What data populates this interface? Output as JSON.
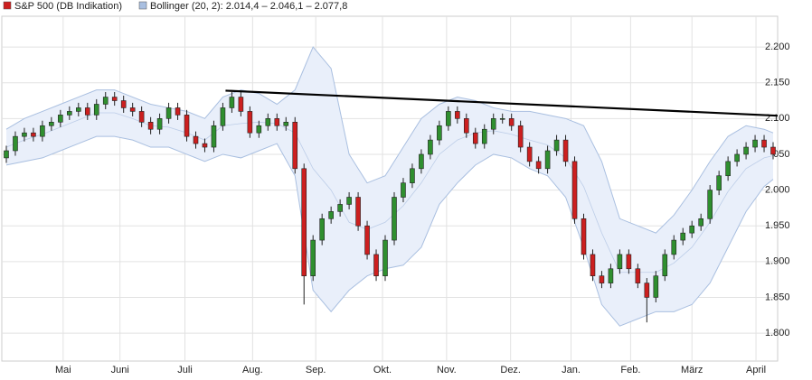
{
  "chart_data": {
    "type": "candlestick",
    "legend": [
      {
        "label": "S&P 500 (DB Indikation)",
        "color": "#cc1f1f"
      },
      {
        "label": "Bollinger (20, 2): 2.014,4 – 2.046,1 – 2.077,8",
        "color": "#a9bfe0"
      }
    ],
    "up_color": "#2f8f2f",
    "down_color": "#cc1f1f",
    "open": [
      2045,
      2055,
      2075,
      2080,
      2075,
      2090,
      2095,
      2105,
      2110,
      2115,
      2105,
      2120,
      2130,
      2125,
      2115,
      2110,
      2095,
      2085,
      2100,
      2115,
      2105,
      2075,
      2065,
      2060,
      2090,
      2115,
      2130,
      2110,
      2080,
      2090,
      2100,
      2090,
      2095,
      2030,
      1880,
      1930,
      1960,
      1970,
      1980,
      1990,
      1950,
      1910,
      1880,
      1930,
      1990,
      2010,
      2030,
      2050,
      2070,
      2090,
      2110,
      2100,
      2080,
      2065,
      2085,
      2100,
      2100,
      2090,
      2060,
      2040,
      2030,
      2055,
      2070,
      2040,
      1960,
      1910,
      1880,
      1870,
      1890,
      1910,
      1890,
      1870,
      1850,
      1880,
      1910,
      1930,
      1940,
      1950,
      1960,
      2000,
      2020,
      2040,
      2050,
      2060,
      2070,
      2060
    ],
    "high": [
      2062,
      2082,
      2087,
      2087,
      2097,
      2102,
      2112,
      2117,
      2122,
      2122,
      2127,
      2137,
      2137,
      2132,
      2122,
      2117,
      2102,
      2107,
      2122,
      2122,
      2112,
      2082,
      2072,
      2097,
      2122,
      2137,
      2137,
      2117,
      2097,
      2107,
      2107,
      2102,
      2102,
      2037,
      1937,
      1967,
      1977,
      1987,
      1997,
      1997,
      1957,
      1917,
      1937,
      1997,
      2017,
      2037,
      2057,
      2077,
      2097,
      2117,
      2117,
      2107,
      2087,
      2092,
      2107,
      2107,
      2107,
      2097,
      2067,
      2047,
      2062,
      2077,
      2077,
      2047,
      1967,
      1917,
      1887,
      1897,
      1917,
      1917,
      1897,
      1877,
      1887,
      1917,
      1937,
      1947,
      1957,
      1967,
      2007,
      2027,
      2047,
      2057,
      2067,
      2077,
      2077,
      2067
    ],
    "low": [
      2038,
      2048,
      2068,
      2068,
      2068,
      2083,
      2088,
      2098,
      2103,
      2098,
      2098,
      2113,
      2118,
      2108,
      2103,
      2088,
      2078,
      2078,
      2093,
      2098,
      2068,
      2058,
      2053,
      2053,
      2083,
      2108,
      2103,
      2073,
      2073,
      2083,
      2083,
      2083,
      2023,
      1840,
      1873,
      1923,
      1953,
      1963,
      1973,
      1943,
      1903,
      1873,
      1873,
      1923,
      1983,
      2003,
      2023,
      2043,
      2063,
      2083,
      2093,
      2073,
      2058,
      2058,
      2078,
      2093,
      2083,
      2053,
      2033,
      2023,
      2023,
      2048,
      2033,
      1953,
      1903,
      1873,
      1863,
      1863,
      1883,
      1883,
      1863,
      1815,
      1843,
      1873,
      1903,
      1923,
      1933,
      1943,
      1953,
      1993,
      2013,
      2033,
      2043,
      2053,
      2053,
      2043
    ],
    "close": [
      2055,
      2075,
      2080,
      2075,
      2090,
      2095,
      2105,
      2110,
      2115,
      2105,
      2120,
      2130,
      2125,
      2115,
      2110,
      2095,
      2085,
      2100,
      2115,
      2105,
      2075,
      2065,
      2060,
      2090,
      2115,
      2130,
      2110,
      2080,
      2090,
      2100,
      2090,
      2095,
      2030,
      1880,
      1930,
      1960,
      1970,
      1980,
      1990,
      1950,
      1910,
      1880,
      1930,
      1990,
      2010,
      2030,
      2050,
      2070,
      2090,
      2110,
      2100,
      2080,
      2065,
      2085,
      2100,
      2100,
      2090,
      2060,
      2040,
      2030,
      2055,
      2070,
      2040,
      1960,
      1910,
      1880,
      1870,
      1890,
      1910,
      1890,
      1870,
      1850,
      1880,
      1910,
      1930,
      1940,
      1950,
      1960,
      2000,
      2020,
      2040,
      2050,
      2060,
      2070,
      2060,
      2050
    ],
    "bands": {
      "x": [
        0.5,
        2.5,
        4.5,
        6.5,
        8.5,
        10.5,
        12.5,
        14.5,
        16.5,
        18.5,
        20.5,
        22.5,
        24.5,
        26.5,
        28.5,
        30.5,
        32.5,
        34.5,
        36.5,
        38.5,
        40.5,
        42.5,
        44.5,
        46.5,
        48.5,
        50.5,
        52.5,
        54.5,
        56.5,
        58.5,
        60.5,
        62.5,
        64.5,
        66.5,
        68.5,
        70.5,
        72.5,
        74.5,
        76.5,
        78.5,
        80.5,
        82.5,
        84.5,
        85.5
      ],
      "upper": [
        2085,
        2100,
        2110,
        2120,
        2130,
        2140,
        2140,
        2130,
        2120,
        2115,
        2110,
        2100,
        2130,
        2140,
        2135,
        2120,
        2140,
        2200,
        2170,
        2050,
        2010,
        2020,
        2060,
        2100,
        2120,
        2130,
        2125,
        2115,
        2110,
        2110,
        2105,
        2100,
        2090,
        2040,
        1960,
        1950,
        1940,
        1965,
        2000,
        2040,
        2075,
        2090,
        2085,
        2080
      ],
      "middle": [
        2060,
        2070,
        2078,
        2088,
        2098,
        2108,
        2108,
        2100,
        2090,
        2088,
        2080,
        2070,
        2090,
        2093,
        2095,
        2093,
        2080,
        2030,
        2000,
        1955,
        1945,
        1955,
        1978,
        2010,
        2050,
        2070,
        2080,
        2083,
        2078,
        2070,
        2063,
        2045,
        2005,
        1940,
        1885,
        1885,
        1885,
        1898,
        1920,
        1955,
        1998,
        2030,
        2045,
        2048
      ],
      "lower": [
        2035,
        2040,
        2045,
        2055,
        2065,
        2075,
        2075,
        2070,
        2060,
        2060,
        2050,
        2040,
        2050,
        2045,
        2055,
        2065,
        2020,
        1860,
        1830,
        1860,
        1880,
        1890,
        1895,
        1920,
        1980,
        2010,
        2035,
        2050,
        2045,
        2030,
        2020,
        1990,
        1920,
        1840,
        1810,
        1820,
        1830,
        1830,
        1840,
        1870,
        1920,
        1970,
        2005,
        2015
      ],
      "color": "#a9bfe0",
      "fill": "#e9effa"
    },
    "trendline": {
      "x": [
        24.8,
        86
      ],
      "values": [
        2139,
        2104
      ],
      "color": "#000000"
    },
    "xlim": [
      0,
      86
    ],
    "xticks": [
      {
        "value": 6.8,
        "label": "Mai"
      },
      {
        "value": 13.1,
        "label": "Juni"
      },
      {
        "value": 20.3,
        "label": "Juli"
      },
      {
        "value": 27.8,
        "label": "Aug."
      },
      {
        "value": 34.8,
        "label": "Sep."
      },
      {
        "value": 42.2,
        "label": "Okt."
      },
      {
        "value": 49.3,
        "label": "Nov."
      },
      {
        "value": 56.4,
        "label": "Dez."
      },
      {
        "value": 63.1,
        "label": "Jan."
      },
      {
        "value": 69.7,
        "label": "Feb."
      },
      {
        "value": 76.5,
        "label": "März"
      },
      {
        "value": 83.6,
        "label": "April"
      }
    ],
    "ylim": [
      1761,
      2243
    ],
    "yticks": [
      {
        "value": 1800,
        "label": "1.800"
      },
      {
        "value": 1850,
        "label": "1.850"
      },
      {
        "value": 1900,
        "label": "1.900"
      },
      {
        "value": 1950,
        "label": "1.950"
      },
      {
        "value": 2000,
        "label": "2.000"
      },
      {
        "value": 2050,
        "label": "2.050"
      },
      {
        "value": 2100,
        "label": "2.100"
      },
      {
        "value": 2150,
        "label": "2.150"
      },
      {
        "value": 2200,
        "label": "2.200"
      }
    ],
    "grid": true
  }
}
